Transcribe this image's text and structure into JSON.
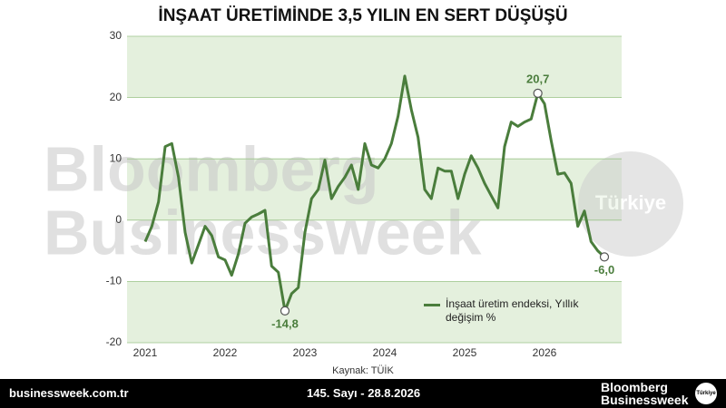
{
  "chart_data": {
    "type": "line",
    "title": "İNŞAAT ÜRETİMİNDE 3,5 YILIN EN SERT DÜŞÜŞÜ",
    "source": "Kaynak: TÜİK",
    "watermark": [
      "Bloomberg",
      "Businessweek",
      "Türkiye"
    ],
    "categories": [
      "2021",
      null,
      null,
      null,
      null,
      null,
      null,
      null,
      null,
      null,
      null,
      null,
      "2022",
      null,
      null,
      null,
      null,
      null,
      null,
      null,
      null,
      null,
      null,
      null,
      "2023",
      null,
      null,
      null,
      null,
      null,
      null,
      null,
      null,
      null,
      null,
      null,
      "2024",
      null,
      null,
      null,
      null,
      null,
      null,
      null,
      null,
      null,
      null,
      null,
      "2025",
      null,
      null,
      null,
      null,
      null,
      null,
      null,
      null,
      null,
      null,
      null,
      "2026",
      null,
      null,
      null,
      null,
      null,
      null,
      null,
      null,
      null
    ],
    "series": [
      {
        "name": "İnşaat üretim endeksi, Yıllık değişim %",
        "color": "#4a7d3c",
        "values": [
          -3.5,
          -1,
          3,
          12,
          12.5,
          7,
          -2,
          -7,
          -4,
          -1,
          -2.5,
          -6,
          -6.5,
          -9,
          -5.5,
          -0.5,
          0.5,
          1,
          1.6,
          -7.5,
          -8.5,
          -14.8,
          -12,
          -11,
          -2,
          3.5,
          5,
          9.8,
          3.5,
          5.5,
          7,
          9,
          5,
          12.5,
          9,
          8.5,
          10,
          12.5,
          17,
          23.5,
          18,
          13.5,
          5,
          3.5,
          8.5,
          8,
          8,
          3.5,
          7.5,
          10.5,
          8.5,
          6,
          4,
          2,
          12,
          16,
          15.3,
          16,
          16.5,
          20.7,
          19,
          13,
          7.5,
          7.7,
          6,
          -1,
          1.5,
          -3.5,
          -5,
          -6.0
        ],
        "value_labels": [
          null,
          null,
          null,
          null,
          null,
          null,
          null,
          null,
          null,
          null,
          null,
          null,
          null,
          null,
          null,
          null,
          null,
          null,
          null,
          null,
          null,
          "-14,8",
          null,
          null,
          null,
          null,
          null,
          null,
          null,
          null,
          null,
          null,
          null,
          null,
          null,
          null,
          null,
          null,
          null,
          null,
          null,
          null,
          null,
          null,
          null,
          null,
          null,
          null,
          null,
          null,
          null,
          null,
          null,
          null,
          null,
          null,
          null,
          null,
          null,
          "20,7",
          null,
          null,
          null,
          null,
          null,
          null,
          null,
          null,
          null,
          "-6,0"
        ]
      }
    ],
    "ylim": [
      -20,
      30
    ],
    "yticks": [
      30,
      20,
      10,
      0,
      -10,
      -20
    ],
    "grid": true,
    "band_color": "#e4f0dd",
    "legend": "lower right"
  },
  "footer": {
    "url": "businessweek.com.tr",
    "issue": "145. Sayı - 28.8.2026",
    "logo": [
      "Bloomberg",
      "Businessweek"
    ],
    "badge": "Türkiye"
  }
}
